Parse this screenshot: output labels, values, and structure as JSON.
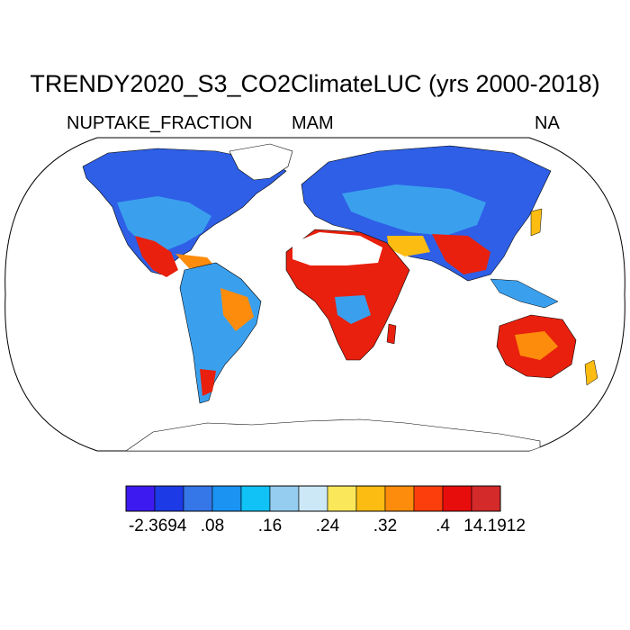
{
  "title": "TRENDY2020_S3_CO2ClimateLUC (yrs 2000-2018)",
  "left_subtitle": "NUPTAKE_FRACTION",
  "center_subtitle": "MAM",
  "right_subtitle": "NA",
  "colorbar": {
    "colors": [
      "#3d1bf0",
      "#1c3ae6",
      "#3576e8",
      "#1a93f2",
      "#10c2f5",
      "#94cdef",
      "#cce8f7",
      "#fbe85a",
      "#fcbc12",
      "#fd8c0c",
      "#fb3e0c",
      "#e80d0d",
      "#d42a2a"
    ],
    "labels": [
      "-2.3694",
      ".08",
      ".16",
      ".24",
      ".32",
      ".4",
      "14.1912"
    ]
  },
  "colors": {
    "land_blue": "#2e5fe6",
    "land_mid": "#3aa0ee",
    "land_warm": "#fcbc12",
    "land_hot": "#e8200d",
    "desert_white": "#ffffff",
    "coast": "#000000"
  }
}
